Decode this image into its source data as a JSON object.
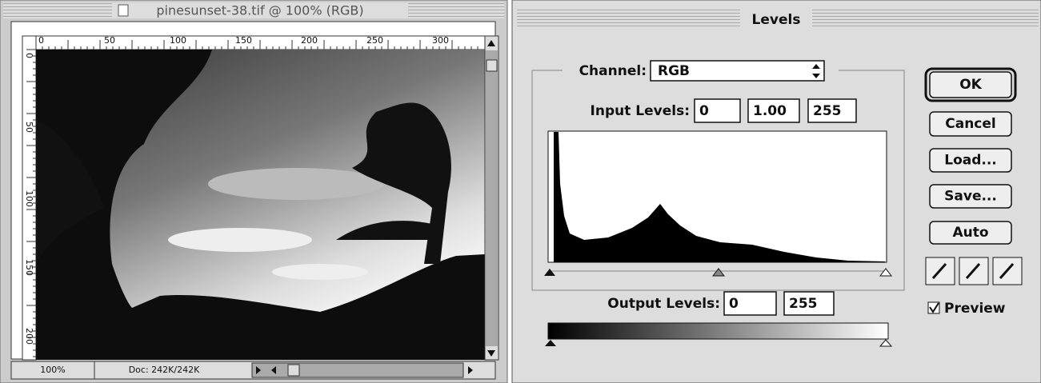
{
  "document_window": {
    "title": "pinesunset-38.tif @ 100% (RGB)",
    "ruler_top": [
      "0",
      "50",
      "100",
      "150",
      "200",
      "250",
      "300"
    ],
    "ruler_left": [
      "0",
      "50",
      "100",
      "150",
      "200"
    ],
    "zoom": "100%",
    "doc_size": "Doc: 242K/242K"
  },
  "levels_dialog": {
    "title": "Levels",
    "channel_label": "Channel:",
    "channel": "RGB",
    "input_label": "Input Levels:",
    "input_levels": [
      "0",
      "1.00",
      "255"
    ],
    "output_label": "Output Levels:",
    "output_levels": [
      "0",
      "255"
    ],
    "buttons": [
      "OK",
      "Cancel",
      "Load...",
      "Save...",
      "Auto"
    ],
    "preview": "Preview"
  }
}
